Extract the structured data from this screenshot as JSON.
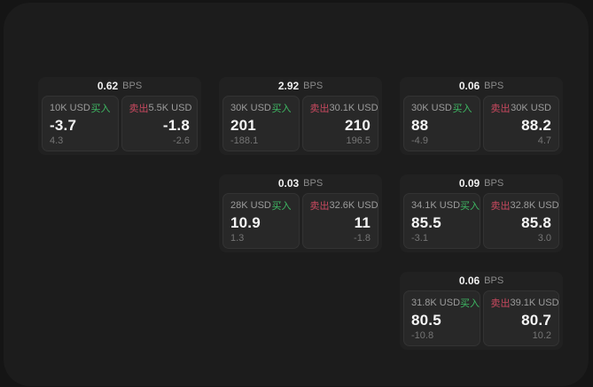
{
  "labels": {
    "bps_unit": "BPS",
    "buy": "买入",
    "sell": "卖出"
  },
  "colors": {
    "buy_green": "#3eb963",
    "sell_red": "#c9495f",
    "panel_bg": "#1c1c1c",
    "card_bg": "#212121",
    "tile_bg": "#282828"
  },
  "cards": [
    {
      "bps": "0.62",
      "buy": {
        "notional": "10K USD",
        "price": "-3.7",
        "secondary": "4.3"
      },
      "sell": {
        "notional": "5.5K USD",
        "price": "-1.8",
        "secondary": "-2.6"
      }
    },
    {
      "bps": "2.92",
      "buy": {
        "notional": "30K USD",
        "price": "201",
        "secondary": "-188.1"
      },
      "sell": {
        "notional": "30.1K USD",
        "price": "210",
        "secondary": "196.5"
      }
    },
    {
      "bps": "0.06",
      "buy": {
        "notional": "30K USD",
        "price": "88",
        "secondary": "-4.9"
      },
      "sell": {
        "notional": "30K USD",
        "price": "88.2",
        "secondary": "4.7"
      }
    },
    {
      "bps": "0.03",
      "buy": {
        "notional": "28K USD",
        "price": "10.9",
        "secondary": "1.3"
      },
      "sell": {
        "notional": "32.6K USD",
        "price": "11",
        "secondary": "-1.8"
      }
    },
    {
      "bps": "0.09",
      "buy": {
        "notional": "34.1K USD",
        "price": "85.5",
        "secondary": "-3.1"
      },
      "sell": {
        "notional": "32.8K USD",
        "price": "85.8",
        "secondary": "3.0"
      }
    },
    {
      "bps": "0.06",
      "buy": {
        "notional": "31.8K USD",
        "price": "80.5",
        "secondary": "-10.8"
      },
      "sell": {
        "notional": "39.1K USD",
        "price": "80.7",
        "secondary": "10.2"
      }
    }
  ]
}
